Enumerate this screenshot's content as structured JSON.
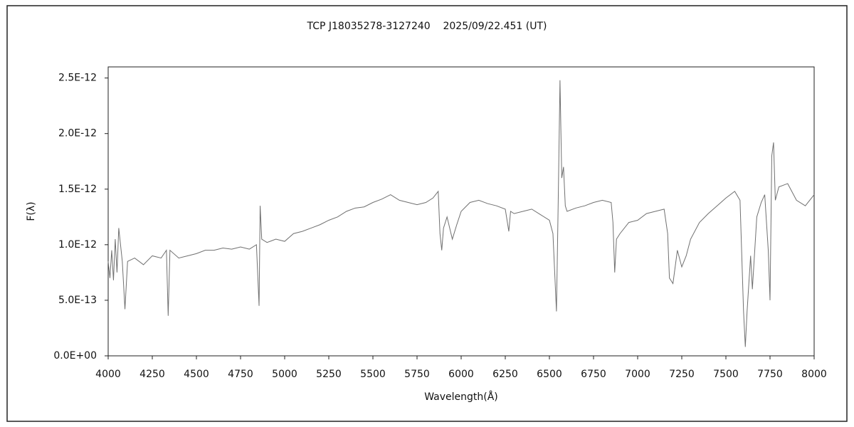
{
  "chart_data": {
    "type": "line",
    "title": "TCP J18035278-3127240    2025/09/22.451 (UT)",
    "x_label": "Wavelength(Å)",
    "y_label": "F(λ)",
    "x": [
      4000,
      4010,
      4020,
      4030,
      4040,
      4050,
      4060,
      4080,
      4095,
      4110,
      4150,
      4200,
      4250,
      4300,
      4330,
      4340,
      4350,
      4400,
      4450,
      4500,
      4550,
      4600,
      4650,
      4700,
      4750,
      4800,
      4840,
      4855,
      4861,
      4870,
      4900,
      4950,
      5000,
      5050,
      5100,
      5150,
      5200,
      5250,
      5300,
      5350,
      5400,
      5450,
      5500,
      5550,
      5600,
      5650,
      5700,
      5750,
      5800,
      5840,
      5870,
      5880,
      5890,
      5900,
      5920,
      5950,
      5975,
      6000,
      6050,
      6100,
      6150,
      6200,
      6250,
      6270,
      6280,
      6300,
      6350,
      6400,
      6450,
      6500,
      6520,
      6540,
      6550,
      6560,
      6570,
      6580,
      6590,
      6600,
      6650,
      6700,
      6750,
      6800,
      6850,
      6860,
      6870,
      6880,
      6900,
      6950,
      7000,
      7050,
      7100,
      7150,
      7170,
      7180,
      7200,
      7225,
      7250,
      7275,
      7300,
      7350,
      7400,
      7450,
      7500,
      7550,
      7580,
      7600,
      7610,
      7620,
      7640,
      7650,
      7675,
      7700,
      7720,
      7740,
      7750,
      7760,
      7770,
      7780,
      7800,
      7850,
      7900,
      7950,
      8000
    ],
    "series": [
      {
        "name": "F(λ)",
        "color": "#707070",
        "values": [
          8.5e-13,
          7e-13,
          9.5e-13,
          6.8e-13,
          1.05e-12,
          7.5e-13,
          1.15e-12,
          8.5e-13,
          4.2e-13,
          8.5e-13,
          8.8e-13,
          8.2e-13,
          9e-13,
          8.8e-13,
          9.5e-13,
          3.6e-13,
          9.5e-13,
          8.8e-13,
          9e-13,
          9.2e-13,
          9.5e-13,
          9.5e-13,
          9.7e-13,
          9.6e-13,
          9.8e-13,
          9.6e-13,
          1e-12,
          4.5e-13,
          1.35e-12,
          1.05e-12,
          1.02e-12,
          1.05e-12,
          1.03e-12,
          1.1e-12,
          1.12e-12,
          1.15e-12,
          1.18e-12,
          1.22e-12,
          1.25e-12,
          1.3e-12,
          1.33e-12,
          1.34e-12,
          1.38e-12,
          1.41e-12,
          1.45e-12,
          1.4e-12,
          1.38e-12,
          1.36e-12,
          1.38e-12,
          1.42e-12,
          1.48e-12,
          1.1e-12,
          9.5e-13,
          1.15e-12,
          1.25e-12,
          1.05e-12,
          1.18e-12,
          1.3e-12,
          1.38e-12,
          1.4e-12,
          1.37e-12,
          1.35e-12,
          1.32e-12,
          1.12e-12,
          1.3e-12,
          1.28e-12,
          1.3e-12,
          1.32e-12,
          1.27e-12,
          1.22e-12,
          1.1e-12,
          4e-13,
          1.4e-12,
          2.48e-12,
          1.6e-12,
          1.7e-12,
          1.35e-12,
          1.3e-12,
          1.33e-12,
          1.35e-12,
          1.38e-12,
          1.4e-12,
          1.38e-12,
          1.2e-12,
          7.5e-13,
          1.05e-12,
          1.1e-12,
          1.2e-12,
          1.22e-12,
          1.28e-12,
          1.3e-12,
          1.32e-12,
          1.1e-12,
          7e-13,
          6.5e-13,
          9.5e-13,
          8e-13,
          9e-13,
          1.05e-12,
          1.2e-12,
          1.28e-12,
          1.35e-12,
          1.42e-12,
          1.48e-12,
          1.4e-12,
          4e-13,
          8e-14,
          4e-13,
          9e-13,
          6e-13,
          1.25e-12,
          1.38e-12,
          1.45e-12,
          9.5e-13,
          5e-13,
          1.8e-12,
          1.92e-12,
          1.4e-12,
          1.52e-12,
          1.55e-12,
          1.4e-12,
          1.35e-12,
          1.45e-12
        ]
      }
    ],
    "xlim": [
      4000,
      8000
    ],
    "xticks": [
      4000,
      4250,
      4500,
      4750,
      5000,
      5250,
      5500,
      5750,
      6000,
      6250,
      6500,
      6750,
      7000,
      7250,
      7500,
      7750,
      8000
    ],
    "ylim": [
      0,
      2.6e-12
    ],
    "yticks": [
      {
        "value": 0,
        "label": "0.0E+00"
      },
      {
        "value": 5e-13,
        "label": "5.0E-13"
      },
      {
        "value": 1e-12,
        "label": "1.0E-12"
      },
      {
        "value": 1.5e-12,
        "label": "1.5E-12"
      },
      {
        "value": 2e-12,
        "label": "2.0E-12"
      },
      {
        "value": 2.5e-12,
        "label": "2.5E-12"
      }
    ],
    "grid": false
  }
}
